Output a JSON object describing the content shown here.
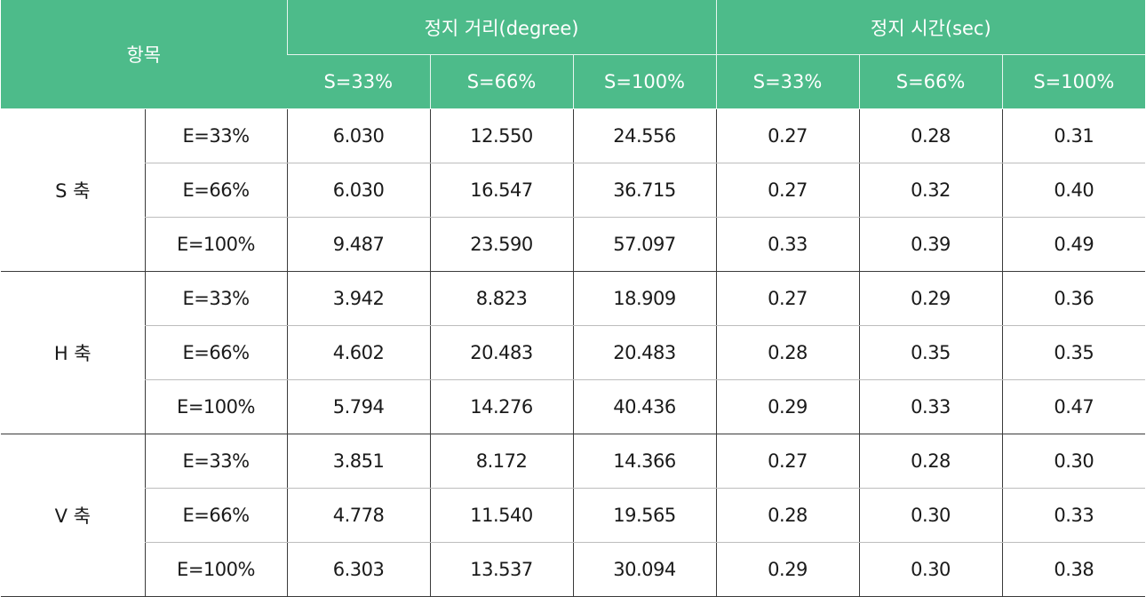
{
  "header": {
    "item": "항목",
    "distance_group": "정지 거리(degree)",
    "time_group": "정지 시간(sec)",
    "speeds": [
      "S=33%",
      "S=66%",
      "S=100%"
    ]
  },
  "rows": [
    {
      "axis": "S 축",
      "e": "E=33%",
      "dist": [
        "6.030",
        "12.550",
        "24.556"
      ],
      "time": [
        "0.27",
        "0.28",
        "0.31"
      ]
    },
    {
      "axis": "S 축",
      "e": "E=66%",
      "dist": [
        "6.030",
        "16.547",
        "36.715"
      ],
      "time": [
        "0.27",
        "0.32",
        "0.40"
      ]
    },
    {
      "axis": "S 축",
      "e": "E=100%",
      "dist": [
        "9.487",
        "23.590",
        "57.097"
      ],
      "time": [
        "0.33",
        "0.39",
        "0.49"
      ]
    },
    {
      "axis": "H 축",
      "e": "E=33%",
      "dist": [
        "3.942",
        "8.823",
        "18.909"
      ],
      "time": [
        "0.27",
        "0.29",
        "0.36"
      ]
    },
    {
      "axis": "H 축",
      "e": "E=66%",
      "dist": [
        "4.602",
        "20.483",
        "20.483"
      ],
      "time": [
        "0.28",
        "0.35",
        "0.35"
      ]
    },
    {
      "axis": "H 축",
      "e": "E=100%",
      "dist": [
        "5.794",
        "14.276",
        "40.436"
      ],
      "time": [
        "0.29",
        "0.33",
        "0.47"
      ]
    },
    {
      "axis": "V 축",
      "e": "E=33%",
      "dist": [
        "3.851",
        "8.172",
        "14.366"
      ],
      "time": [
        "0.27",
        "0.28",
        "0.30"
      ]
    },
    {
      "axis": "V 축",
      "e": "E=66%",
      "dist": [
        "4.778",
        "11.540",
        "19.565"
      ],
      "time": [
        "0.28",
        "0.30",
        "0.33"
      ]
    },
    {
      "axis": "V 축",
      "e": "E=100%",
      "dist": [
        "6.303",
        "13.537",
        "30.094"
      ],
      "time": [
        "0.29",
        "0.30",
        "0.38"
      ]
    }
  ],
  "colors": {
    "header_bg": "#4dbb8a",
    "header_text": "#ffffff",
    "body_text": "#1a1a1a"
  }
}
